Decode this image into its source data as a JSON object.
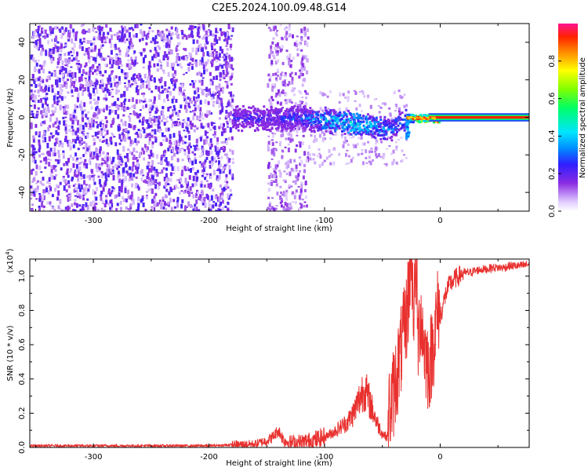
{
  "figure": {
    "title": "C2E5.2024.100.09.48.G14"
  },
  "chart_data": [
    {
      "type": "heatmap",
      "panel": "spectrogram",
      "xlabel": "Height of straight line (km)",
      "ylabel": "Frequency (Hz)",
      "xlim": [
        -355,
        77
      ],
      "ylim": [
        -50,
        50
      ],
      "xticks": [
        -300,
        -200,
        -100,
        0
      ],
      "xtick_labels": [
        "-300",
        "-200",
        "-100",
        "0"
      ],
      "yticks": [
        -40,
        -20,
        0,
        20,
        40
      ],
      "ytick_labels": [
        "-40",
        "-20",
        "0",
        "20",
        "40"
      ],
      "colorbar": {
        "label": "Normalized spectral amplitude",
        "range": [
          0,
          1
        ],
        "ticks": [
          0.0,
          0.2,
          0.4,
          0.6,
          0.8
        ],
        "tick_labels": [
          "0.0",
          "0.2",
          "0.4",
          "0.6",
          "0.8"
        ]
      },
      "features": [
        {
          "name": "diffuse noise",
          "x_range": [
            -355,
            -180
          ],
          "freq_range": [
            -50,
            50
          ],
          "amplitude": 0.1
        },
        {
          "name": "noise band",
          "x_range": [
            -150,
            -115
          ],
          "freq_range": [
            -50,
            50
          ],
          "amplitude": 0.06
        },
        {
          "name": "signal trace",
          "x": [
            -180,
            -150,
            -120,
            -100,
            -80,
            -60,
            -45,
            -30,
            -20,
            -10,
            0,
            77
          ],
          "freq": [
            0,
            0,
            0,
            -1,
            -2,
            -4,
            -6,
            0,
            0,
            0,
            0,
            0
          ],
          "amplitude": [
            0.25,
            0.25,
            0.3,
            0.4,
            0.45,
            0.4,
            0.35,
            0.35,
            0.7,
            0.8,
            0.9,
            0.95
          ]
        }
      ]
    },
    {
      "type": "line",
      "panel": "snr",
      "xlabel": "Height of straight line (km)",
      "ylabel": "SNR (10 * v/v)",
      "scale_label": "(x10",
      "scale_exponent": "4",
      "scale_close": ")",
      "xlim": [
        -355,
        77
      ],
      "ylim": [
        0,
        1.1
      ],
      "xticks": [
        -300,
        -200,
        -100,
        0
      ],
      "xtick_labels": [
        "-300",
        "-200",
        "-100",
        "0"
      ],
      "yticks": [
        0.0,
        0.2,
        0.4,
        0.6,
        0.8,
        1.0
      ],
      "ytick_labels": [
        "0.0",
        "0.2",
        "0.4",
        "0.6",
        "0.8",
        "1.0"
      ],
      "series": [
        {
          "name": "SNR",
          "color": "#e8302e",
          "x": [
            -355,
            -300,
            -250,
            -200,
            -180,
            -160,
            -150,
            -145,
            -140,
            -135,
            -130,
            -120,
            -110,
            -100,
            -90,
            -80,
            -75,
            -70,
            -66,
            -63,
            -60,
            -55,
            -50,
            -46,
            -42,
            -38,
            -34,
            -30,
            -27,
            -25,
            -23,
            -21,
            -19,
            -17,
            -15,
            -13,
            -10,
            -7,
            -4,
            -1,
            2,
            5,
            8,
            12,
            16,
            20,
            25,
            30,
            35,
            40,
            45,
            50,
            55,
            60,
            65,
            70,
            77
          ],
          "y": [
            0.01,
            0.01,
            0.01,
            0.01,
            0.015,
            0.02,
            0.04,
            0.06,
            0.1,
            0.04,
            0.03,
            0.03,
            0.04,
            0.06,
            0.1,
            0.15,
            0.2,
            0.28,
            0.35,
            0.3,
            0.25,
            0.15,
            0.08,
            0.06,
            0.15,
            0.3,
            0.45,
            0.6,
            0.8,
            1.08,
            0.7,
            0.95,
            0.5,
            0.7,
            0.55,
            0.45,
            0.35,
            0.45,
            0.6,
            0.72,
            0.82,
            0.9,
            0.95,
            0.98,
            1.0,
            1.02,
            1.02,
            1.03,
            1.04,
            1.04,
            1.05,
            1.05,
            1.05,
            1.06,
            1.06,
            1.06,
            1.07
          ]
        }
      ]
    }
  ]
}
